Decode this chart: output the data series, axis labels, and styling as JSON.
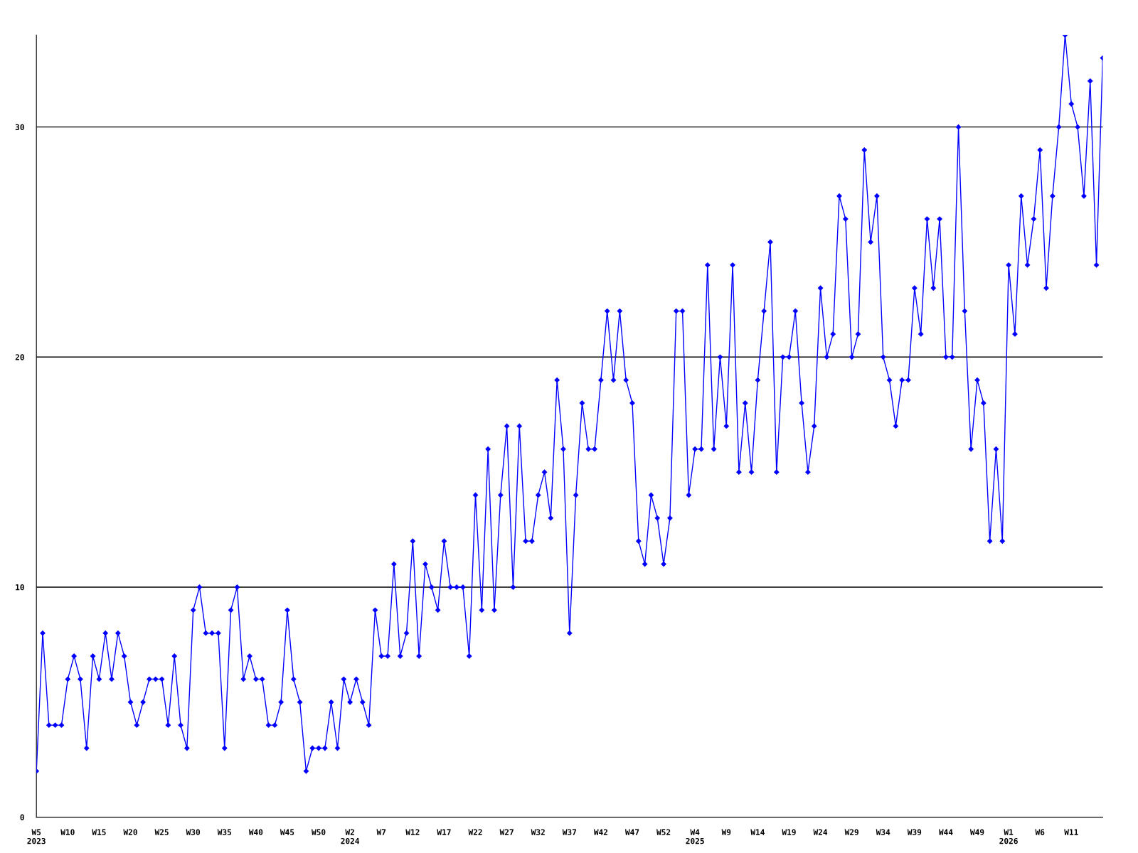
{
  "chart_data": {
    "type": "line",
    "categories": [
      "W5\n2023",
      null,
      null,
      null,
      null,
      "W10",
      null,
      null,
      null,
      null,
      "W15",
      null,
      null,
      null,
      null,
      "W20",
      null,
      null,
      null,
      null,
      "W25",
      null,
      null,
      null,
      null,
      "W30",
      null,
      null,
      null,
      null,
      "W35",
      null,
      null,
      null,
      null,
      "W40",
      null,
      null,
      null,
      null,
      "W45",
      null,
      null,
      null,
      null,
      "W50",
      null,
      null,
      null,
      null,
      "W2\n2024",
      null,
      null,
      null,
      null,
      "W7",
      null,
      null,
      null,
      null,
      "W12",
      null,
      null,
      null,
      null,
      "W17",
      null,
      null,
      null,
      null,
      "W22",
      null,
      null,
      null,
      null,
      "W27",
      null,
      null,
      null,
      null,
      "W32",
      null,
      null,
      null,
      null,
      "W37",
      null,
      null,
      null,
      null,
      "W42",
      null,
      null,
      null,
      null,
      "W47",
      null,
      null,
      null,
      null,
      "W52",
      null,
      null,
      null,
      null,
      "W4\n2025",
      null,
      null,
      null,
      null,
      "W9",
      null,
      null,
      null,
      null,
      "W14",
      null,
      null,
      null,
      null,
      "W19",
      null,
      null,
      null,
      null,
      "W24",
      null,
      null,
      null,
      null,
      "W29",
      null,
      null,
      null,
      null,
      "W34",
      null,
      null,
      null,
      null,
      "W39",
      null,
      null,
      null,
      null,
      "W44",
      null,
      null,
      null,
      null,
      "W49",
      null,
      null,
      null,
      null,
      "W1\n2026",
      null,
      null,
      null,
      null,
      "W6",
      null,
      null,
      null,
      null,
      "W11",
      null,
      null,
      null,
      null,
      null
    ],
    "series": [
      {
        "color": "#0000ff",
        "values": [
          2,
          8,
          4,
          4,
          4,
          6,
          7,
          6,
          3,
          7,
          6,
          8,
          6,
          8,
          7,
          5,
          4,
          5,
          6,
          6,
          6,
          4,
          7,
          4,
          3,
          9,
          10,
          8,
          8,
          8,
          3,
          9,
          10,
          6,
          7,
          6,
          6,
          4,
          4,
          5,
          9,
          6,
          5,
          2,
          3,
          3,
          3,
          5,
          3,
          6,
          5,
          6,
          5,
          4,
          9,
          7,
          7,
          11,
          7,
          8,
          12,
          7,
          11,
          10,
          9,
          12,
          10,
          10,
          10,
          7,
          14,
          9,
          16,
          9,
          14,
          17,
          10,
          17,
          12,
          12,
          14,
          15,
          13,
          19,
          16,
          8,
          14,
          18,
          16,
          16,
          19,
          22,
          19,
          22,
          19,
          18,
          12,
          11,
          14,
          13,
          11,
          13,
          22,
          22,
          14,
          16,
          16,
          24,
          16,
          20,
          17,
          24,
          15,
          18,
          15,
          19,
          22,
          25,
          15,
          20,
          20,
          22,
          18,
          15,
          17,
          23,
          20,
          21,
          27,
          26,
          20,
          21,
          29,
          25,
          27,
          20,
          19,
          17,
          19,
          19,
          23,
          21,
          26,
          23,
          26,
          20,
          20,
          30,
          22,
          16,
          19,
          18,
          12,
          16,
          12,
          24,
          21,
          27,
          24,
          26,
          29,
          23,
          27,
          30,
          34,
          31,
          30,
          27,
          32,
          24,
          33
        ]
      }
    ],
    "ylim": [
      0,
      34
    ],
    "yticks": [
      0,
      10,
      20,
      30
    ],
    "grid": "y",
    "marker": "diamond",
    "line_style": "solid"
  }
}
